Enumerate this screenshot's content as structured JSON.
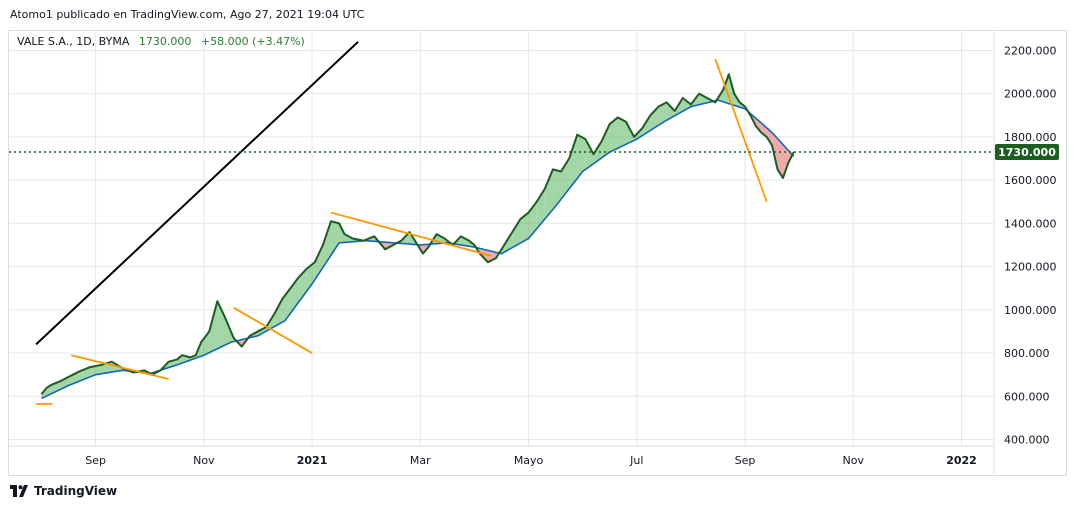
{
  "publisher_line": "Atomo1 publicado en TradingView.com, Ago 27, 2021 19:04 UTC",
  "legend": {
    "symbol": "VALE S.A., 1D, BYMA",
    "last": "1730.000",
    "change": "+58.000 (+3.47%)"
  },
  "footer": {
    "brand": "TradingView"
  },
  "colors": {
    "price_line": "#1b5e20",
    "ma_line": "#1565c0",
    "cloud_up": "#66bb6a",
    "cloud_down": "#e57373",
    "trendline_orange": "#ff9800",
    "trendline_black": "#000000",
    "last_price": "#1b5e20",
    "grid": "#e6e8ec"
  },
  "chart_data": {
    "type": "line",
    "x_tick_labels": [
      "Sep",
      "Nov",
      "2021",
      "Mar",
      "Mayo",
      "Jul",
      "Sep",
      "Nov",
      "2022"
    ],
    "bold_x_ticks": [
      "2021",
      "2022"
    ],
    "y_tick_labels": [
      "2200.000",
      "2000.000",
      "1800.000",
      "1600.000",
      "1400.000",
      "1200.000",
      "1000.000",
      "800.000",
      "600.000",
      "400.000"
    ],
    "ylim": [
      370,
      2290
    ],
    "last_price": 1730,
    "last_price_label": "1730.000",
    "grid": true,
    "x_unit": "months since 2020-08-01",
    "series": [
      {
        "name": "VALE S.A.",
        "x": [
          0,
          0.1,
          0.2,
          0.35,
          0.5,
          0.7,
          0.9,
          1.1,
          1.3,
          1.5,
          1.7,
          1.9,
          2.05,
          2.2,
          2.35,
          2.5,
          2.6,
          2.75,
          2.85,
          2.95,
          3.1,
          3.25,
          3.4,
          3.55,
          3.7,
          3.85,
          4.0,
          4.15,
          4.3,
          4.45,
          4.6,
          4.75,
          4.9,
          5.05,
          5.2,
          5.35,
          5.5,
          5.6,
          5.75,
          5.95,
          6.15,
          6.35,
          6.5,
          6.65,
          6.8,
          6.95,
          7.05,
          7.15,
          7.3,
          7.45,
          7.6,
          7.75,
          7.9,
          8.0,
          8.1,
          8.25,
          8.4,
          8.55,
          8.7,
          8.85,
          9.0,
          9.15,
          9.3,
          9.45,
          9.6,
          9.75,
          9.9,
          10.05,
          10.2,
          10.35,
          10.5,
          10.65,
          10.8,
          10.95,
          11.1,
          11.25,
          11.4,
          11.55,
          11.7,
          11.85,
          12.0,
          12.15,
          12.3,
          12.45,
          12.6,
          12.7,
          12.8,
          12.9,
          13.0,
          13.1,
          13.2,
          13.3,
          13.4,
          13.5,
          13.6,
          13.7,
          13.8,
          13.9
        ],
        "y": [
          610,
          640,
          655,
          670,
          690,
          715,
          735,
          745,
          760,
          730,
          710,
          720,
          700,
          720,
          760,
          770,
          790,
          780,
          790,
          850,
          900,
          1040,
          960,
          870,
          830,
          880,
          900,
          920,
          980,
          1050,
          1100,
          1150,
          1190,
          1220,
          1300,
          1410,
          1400,
          1350,
          1330,
          1320,
          1340,
          1280,
          1300,
          1320,
          1360,
          1300,
          1260,
          1290,
          1350,
          1330,
          1300,
          1340,
          1320,
          1300,
          1260,
          1220,
          1240,
          1300,
          1360,
          1420,
          1450,
          1500,
          1560,
          1650,
          1640,
          1700,
          1810,
          1790,
          1720,
          1780,
          1860,
          1890,
          1870,
          1800,
          1840,
          1900,
          1940,
          1960,
          1920,
          1980,
          1950,
          2000,
          1980,
          1960,
          2020,
          2090,
          2000,
          1960,
          1940,
          1900,
          1850,
          1820,
          1800,
          1760,
          1650,
          1610,
          1680,
          1730
        ]
      },
      {
        "name": "MA",
        "x": [
          0,
          0.5,
          1.0,
          1.5,
          2.0,
          2.5,
          3.0,
          3.5,
          4.0,
          4.5,
          5.0,
          5.5,
          6.0,
          6.5,
          7.0,
          7.5,
          8.0,
          8.5,
          9.0,
          9.5,
          10.0,
          10.5,
          11.0,
          11.5,
          12.0,
          12.5,
          13.0,
          13.5,
          13.9
        ],
        "y": [
          590,
          650,
          700,
          720,
          705,
          745,
          790,
          850,
          880,
          950,
          1120,
          1310,
          1320,
          1310,
          1300,
          1310,
          1290,
          1260,
          1330,
          1480,
          1640,
          1730,
          1790,
          1870,
          1940,
          1970,
          1930,
          1820,
          1710
        ]
      }
    ],
    "trendlines": [
      {
        "color": "orange",
        "x": [
          0.55,
          2.35
        ],
        "y": [
          790,
          680
        ]
      },
      {
        "color": "orange",
        "x": [
          3.55,
          5.0
        ],
        "y": [
          1010,
          800
        ]
      },
      {
        "color": "orange",
        "x": [
          5.35,
          8.3
        ],
        "y": [
          1450,
          1250
        ]
      },
      {
        "color": "orange",
        "x": [
          12.45,
          13.4
        ],
        "y": [
          2160,
          1500
        ]
      },
      {
        "color": "orange",
        "x": [
          -0.1,
          0.2
        ],
        "y": [
          565,
          565
        ]
      },
      {
        "color": "black",
        "x": [
          -0.1,
          5.85
        ],
        "y": [
          840,
          2240
        ]
      }
    ]
  }
}
